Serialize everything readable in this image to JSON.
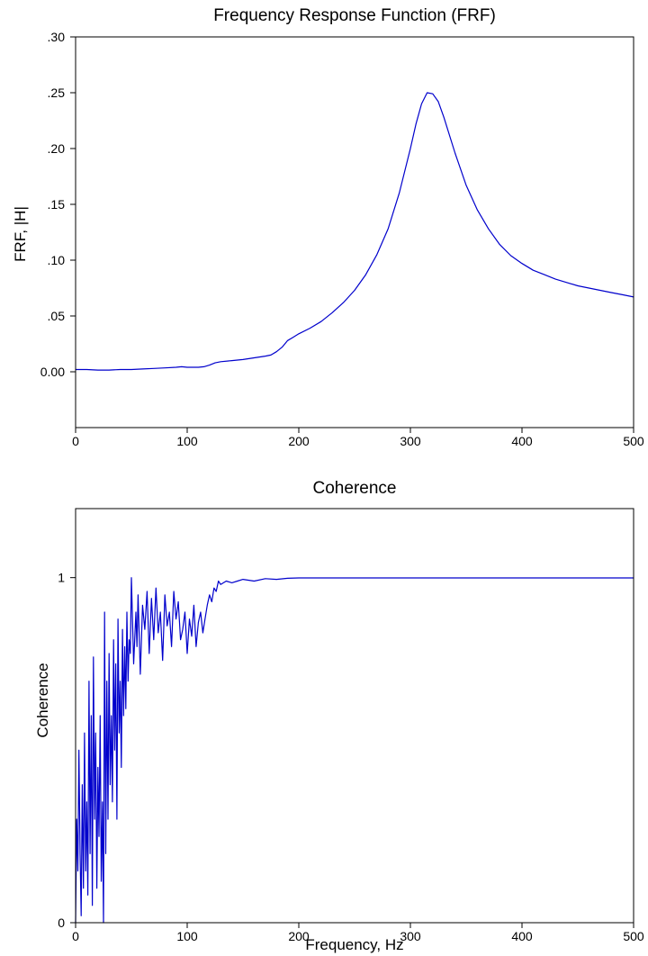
{
  "chart_data": [
    {
      "type": "line",
      "title": "Frequency Response Function (FRF)",
      "xlabel": "",
      "ylabel": "FRF, |H|",
      "xlim": [
        0,
        500
      ],
      "ylim": [
        -0.05,
        0.3
      ],
      "x_ticks": [
        0,
        100,
        200,
        300,
        400,
        500
      ],
      "x_tick_labels": [
        "0",
        "100",
        "200",
        "300",
        "400",
        "500"
      ],
      "y_ticks": [
        0.0,
        0.05,
        0.1,
        0.15,
        0.2,
        0.25,
        0.3
      ],
      "y_tick_labels": [
        "0.00",
        ".05",
        ".10",
        ".15",
        ".20",
        ".25",
        ".30"
      ],
      "grid": false,
      "color": "#0000cc",
      "series": [
        {
          "x": [
            0,
            10,
            20,
            30,
            40,
            50,
            60,
            70,
            80,
            90,
            95,
            100,
            110,
            115,
            120,
            125,
            130,
            140,
            150,
            160,
            170,
            175,
            180,
            185,
            190,
            195,
            200,
            210,
            220,
            230,
            240,
            250,
            260,
            270,
            280,
            290,
            300,
            305,
            310,
            315,
            320,
            325,
            330,
            340,
            350,
            360,
            370,
            380,
            390,
            400,
            410,
            420,
            430,
            440,
            450,
            460,
            470,
            480,
            490,
            500
          ],
          "y": [
            0.002,
            0.002,
            0.0015,
            0.0015,
            0.002,
            0.002,
            0.0025,
            0.003,
            0.0035,
            0.004,
            0.0045,
            0.004,
            0.004,
            0.0045,
            0.006,
            0.008,
            0.009,
            0.01,
            0.011,
            0.0125,
            0.014,
            0.015,
            0.018,
            0.022,
            0.028,
            0.031,
            0.034,
            0.039,
            0.045,
            0.053,
            0.062,
            0.073,
            0.087,
            0.105,
            0.128,
            0.16,
            0.2,
            0.222,
            0.24,
            0.25,
            0.249,
            0.242,
            0.228,
            0.196,
            0.167,
            0.145,
            0.128,
            0.114,
            0.104,
            0.097,
            0.091,
            0.087,
            0.083,
            0.08,
            0.077,
            0.075,
            0.073,
            0.071,
            0.069,
            0.067
          ]
        }
      ]
    },
    {
      "type": "line",
      "title": "Coherence",
      "xlabel": "Frequency, Hz",
      "ylabel": "Coherence",
      "xlim": [
        0,
        500
      ],
      "ylim": [
        0,
        1.2
      ],
      "x_ticks": [
        0,
        100,
        200,
        300,
        400,
        500
      ],
      "x_tick_labels": [
        "0",
        "100",
        "200",
        "300",
        "400",
        "500"
      ],
      "y_ticks": [
        0,
        1
      ],
      "y_tick_labels": [
        "0",
        "1"
      ],
      "grid": false,
      "color": "#0000cc",
      "series": [
        {
          "x": [
            0,
            1,
            2,
            3,
            4,
            5,
            6,
            7,
            8,
            9,
            10,
            11,
            12,
            13,
            14,
            15,
            16,
            17,
            18,
            19,
            20,
            21,
            22,
            23,
            24,
            25,
            26,
            27,
            28,
            29,
            30,
            31,
            32,
            33,
            34,
            35,
            36,
            37,
            38,
            39,
            40,
            41,
            42,
            43,
            44,
            45,
            46,
            47,
            48,
            49,
            50,
            52,
            54,
            55,
            56,
            58,
            60,
            62,
            64,
            66,
            68,
            70,
            72,
            74,
            76,
            78,
            80,
            82,
            84,
            86,
            88,
            90,
            92,
            94,
            96,
            98,
            100,
            102,
            104,
            106,
            108,
            110,
            112,
            114,
            116,
            118,
            120,
            122,
            124,
            126,
            128,
            130,
            135,
            140,
            145,
            150,
            160,
            170,
            180,
            190,
            200,
            250,
            300,
            350,
            400,
            450,
            500
          ],
          "y": [
            0.0,
            0.3,
            0.15,
            0.5,
            0.2,
            0.02,
            0.4,
            0.1,
            0.55,
            0.15,
            0.35,
            0.08,
            0.7,
            0.2,
            0.6,
            0.05,
            0.77,
            0.3,
            0.55,
            0.1,
            0.45,
            0.25,
            0.6,
            0.12,
            0.35,
            0.0,
            0.9,
            0.2,
            0.7,
            0.3,
            0.78,
            0.4,
            0.6,
            0.35,
            0.82,
            0.5,
            0.75,
            0.3,
            0.88,
            0.55,
            0.7,
            0.45,
            0.85,
            0.6,
            0.8,
            0.62,
            0.9,
            0.7,
            0.82,
            0.78,
            1.0,
            0.75,
            0.9,
            0.8,
            0.95,
            0.72,
            0.92,
            0.85,
            0.96,
            0.78,
            0.94,
            0.82,
            0.97,
            0.84,
            0.9,
            0.76,
            0.95,
            0.86,
            0.9,
            0.8,
            0.96,
            0.88,
            0.93,
            0.82,
            0.85,
            0.9,
            0.78,
            0.88,
            0.83,
            0.92,
            0.8,
            0.87,
            0.9,
            0.84,
            0.88,
            0.92,
            0.95,
            0.93,
            0.97,
            0.96,
            0.99,
            0.98,
            0.99,
            0.985,
            0.99,
            0.995,
            0.99,
            0.997,
            0.995,
            0.998,
            0.999,
            0.999,
            0.999,
            0.999,
            0.999,
            0.999,
            0.999
          ]
        }
      ]
    }
  ]
}
